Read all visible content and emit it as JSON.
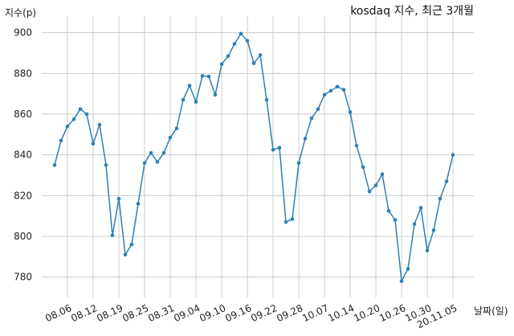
{
  "chart_data": {
    "type": "line",
    "title": "kosdaq 지수, 최근 3개월",
    "ylabel": "지수(p)",
    "xlabel": "날짜(일)",
    "ylim": [
      770,
      905
    ],
    "yticks": [
      780,
      800,
      820,
      840,
      860,
      880,
      900
    ],
    "xtick_labels": [
      "08.06",
      "08.12",
      "08.19",
      "08.25",
      "08.31",
      "09.04",
      "09.10",
      "09.16",
      "09.22",
      "09.28",
      "10.07",
      "10.14",
      "10.20",
      "10.26",
      "10.30",
      "20.11.05"
    ],
    "xtick_index": [
      2,
      6,
      10,
      14,
      18,
      22,
      26,
      30,
      34,
      38,
      42,
      46,
      50,
      54,
      58,
      62
    ],
    "grid": true,
    "line_color": "#2f7fb5",
    "series": [
      {
        "values": [
          835,
          847,
          854,
          857.5,
          862.5,
          860,
          845.5,
          854.8,
          835,
          800.5,
          818.5,
          791,
          796,
          816,
          836,
          841,
          836.5,
          841,
          848.5,
          853,
          867,
          874,
          866,
          878.8,
          878.5,
          869.5,
          884.5,
          888.5,
          894.5,
          899.5,
          896,
          885,
          889,
          867,
          842.5,
          843.5,
          807,
          808.5,
          836,
          848,
          858,
          862.5,
          869.5,
          871.5,
          873.5,
          872,
          861,
          844.5,
          834,
          822,
          825,
          830.5,
          812.5,
          808,
          778,
          784,
          806,
          814,
          793,
          803,
          818.5,
          827,
          840
        ]
      }
    ]
  }
}
